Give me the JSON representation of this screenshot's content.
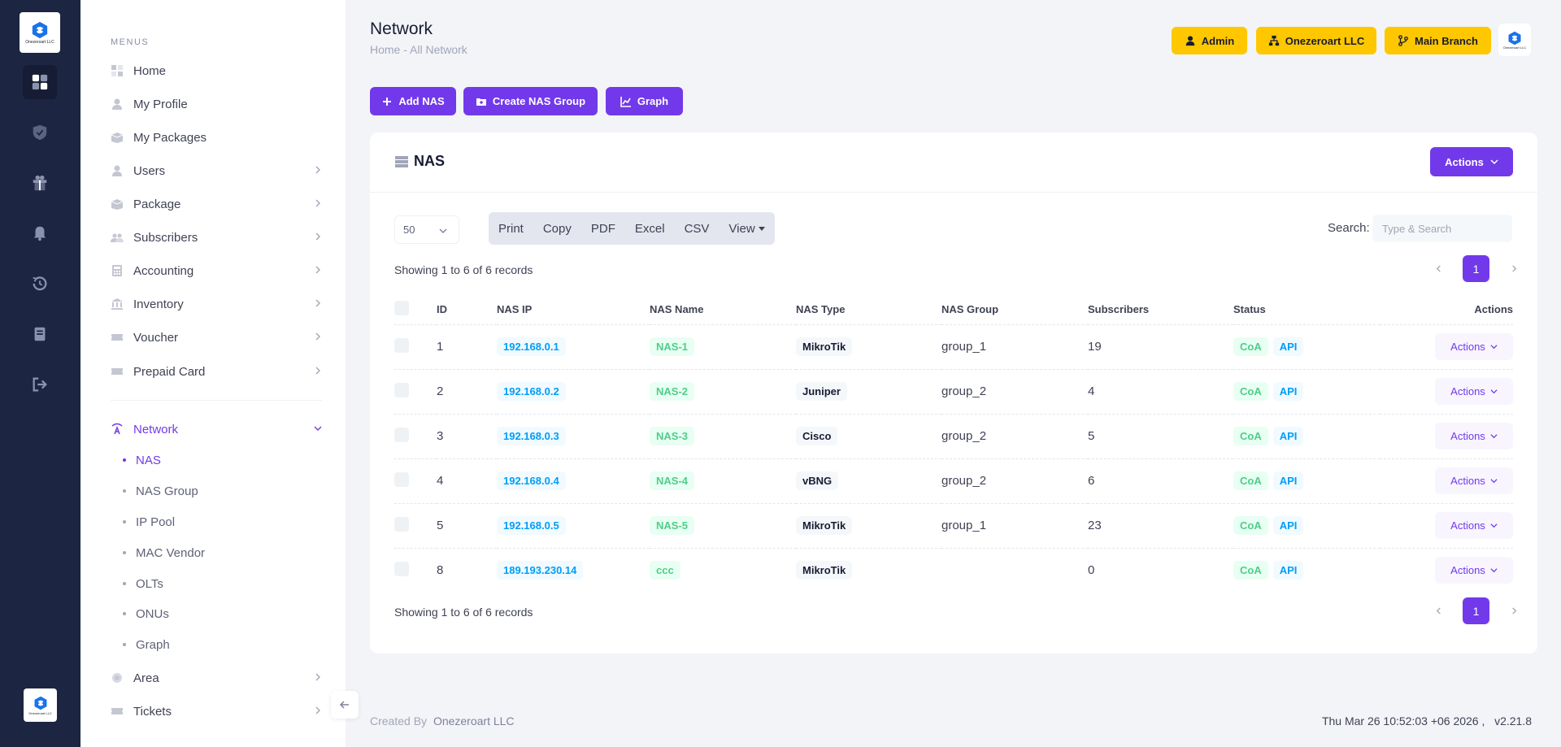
{
  "brand": {
    "logo_text": "Onezeroart LLC",
    "accent": "#7239ea",
    "warning": "#ffc700",
    "rail_bg": "#1c2541"
  },
  "rail": {
    "icons": [
      "dashboard-icon",
      "shield-check-icon",
      "gift-icon",
      "bell-icon",
      "history-icon",
      "book-icon",
      "logout-icon"
    ]
  },
  "sidebar": {
    "menus_label": "MENUS",
    "items": [
      {
        "label": "Home",
        "icon": "home-icon"
      },
      {
        "label": "My Profile",
        "icon": "user-icon"
      },
      {
        "label": "My Packages",
        "icon": "package-icon"
      },
      {
        "label": "Users",
        "icon": "user-icon"
      },
      {
        "label": "Package",
        "icon": "package-icon"
      },
      {
        "label": "Subscribers",
        "icon": "users-icon"
      },
      {
        "label": "Accounting",
        "icon": "calculator-icon"
      },
      {
        "label": "Inventory",
        "icon": "bank-icon"
      },
      {
        "label": "Voucher",
        "icon": "ticket-icon"
      },
      {
        "label": "Prepaid Card",
        "icon": "ticket-icon"
      }
    ],
    "network": {
      "label": "Network",
      "icon": "network-icon"
    },
    "network_sub": [
      "NAS",
      "NAS Group",
      "IP Pool",
      "MAC Vendor",
      "OLTs",
      "ONUs",
      "Graph"
    ],
    "area": {
      "label": "Area",
      "icon": "globe-icon"
    },
    "tickets": {
      "label": "Tickets",
      "icon": "ticket-icon"
    }
  },
  "header": {
    "title": "Network",
    "breadcrumb": "Home  -  All Network",
    "admin_label": "Admin",
    "company_label": "Onezeroart LLC",
    "branch_label": "Main Branch"
  },
  "toolbar": {
    "add_nas": "Add NAS",
    "create_group": "Create NAS Group",
    "graph": "Graph"
  },
  "card": {
    "title": "NAS",
    "actions_label": "Actions",
    "page_length": "50",
    "exports": [
      "Print",
      "Copy",
      "PDF",
      "Excel",
      "CSV"
    ],
    "view_label": "View",
    "search_label": "Search:",
    "search_placeholder": "Type & Search",
    "records_top": "Showing 1 to 6 of 6 records",
    "records_bottom": "Showing 1 to 6 of 6 records",
    "current_page": "1",
    "columns": [
      "ID",
      "NAS IP",
      "NAS Name",
      "NAS Type",
      "NAS Group",
      "Subscribers",
      "Status",
      "Actions"
    ],
    "rows": [
      {
        "id": "1",
        "ip": "192.168.0.1",
        "name": "NAS-1",
        "type": "MikroTik",
        "group": "group_1",
        "subs": "19",
        "coa": "CoA",
        "api": "API",
        "action": "Actions"
      },
      {
        "id": "2",
        "ip": "192.168.0.2",
        "name": "NAS-2",
        "type": "Juniper",
        "group": "group_2",
        "subs": "4",
        "coa": "CoA",
        "api": "API",
        "action": "Actions"
      },
      {
        "id": "3",
        "ip": "192.168.0.3",
        "name": "NAS-3",
        "type": "Cisco",
        "group": "group_2",
        "subs": "5",
        "coa": "CoA",
        "api": "API",
        "action": "Actions"
      },
      {
        "id": "4",
        "ip": "192.168.0.4",
        "name": "NAS-4",
        "type": "vBNG",
        "group": "group_2",
        "subs": "6",
        "coa": "CoA",
        "api": "API",
        "action": "Actions"
      },
      {
        "id": "5",
        "ip": "192.168.0.5",
        "name": "NAS-5",
        "type": "MikroTik",
        "group": "group_1",
        "subs": "23",
        "coa": "CoA",
        "api": "API",
        "action": "Actions"
      },
      {
        "id": "8",
        "ip": "189.193.230.14",
        "name": "ccc",
        "type": "MikroTik",
        "group": "",
        "subs": "0",
        "coa": "CoA",
        "api": "API",
        "action": "Actions"
      }
    ]
  },
  "footer": {
    "created_by": "Created By",
    "company": "Onezeroart LLC",
    "datetime": "Thu Mar 26 10:52:03 +06 2026 ,",
    "version": "v2.21.8"
  }
}
